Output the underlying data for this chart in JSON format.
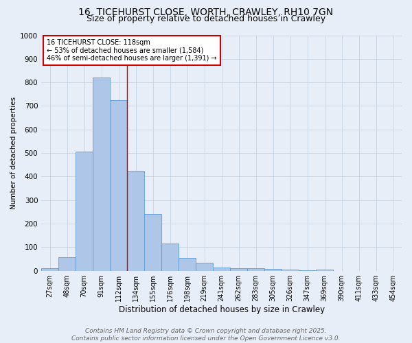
{
  "title_line1": "16, TICEHURST CLOSE, WORTH, CRAWLEY, RH10 7GN",
  "title_line2": "Size of property relative to detached houses in Crawley",
  "xlabel": "Distribution of detached houses by size in Crawley",
  "ylabel": "Number of detached properties",
  "bar_labels": [
    "27sqm",
    "48sqm",
    "70sqm",
    "91sqm",
    "112sqm",
    "134sqm",
    "155sqm",
    "176sqm",
    "198sqm",
    "219sqm",
    "241sqm",
    "262sqm",
    "283sqm",
    "305sqm",
    "326sqm",
    "347sqm",
    "369sqm",
    "390sqm",
    "411sqm",
    "433sqm",
    "454sqm"
  ],
  "bar_values": [
    10,
    57,
    505,
    820,
    725,
    425,
    240,
    115,
    55,
    33,
    14,
    10,
    12,
    8,
    5,
    3,
    5,
    0,
    0,
    0,
    0
  ],
  "bar_color": "#aec6e8",
  "bar_edge_color": "#5b9bd5",
  "annotation_box_text": "16 TICEHURST CLOSE: 118sqm\n← 53% of detached houses are smaller (1,584)\n46% of semi-detached houses are larger (1,391) →",
  "annotation_box_color": "#ffffff",
  "annotation_box_edge_color": "#cc0000",
  "vline_x_idx": 4,
  "vline_color": "#cc0000",
  "ylim": [
    0,
    1000
  ],
  "yticks": [
    0,
    100,
    200,
    300,
    400,
    500,
    600,
    700,
    800,
    900,
    1000
  ],
  "grid_color": "#c8d4e4",
  "footer_text": "Contains HM Land Registry data © Crown copyright and database right 2025.\nContains public sector information licensed under the Open Government Licence v3.0.",
  "bg_color": "#e8eef8",
  "title_fontsize": 10,
  "subtitle_fontsize": 9,
  "annotation_fontsize": 7,
  "footer_fontsize": 6.5,
  "ylabel_fontsize": 7.5,
  "xlabel_fontsize": 8.5,
  "tick_fontsize": 7,
  "ytick_fontsize": 7.5
}
